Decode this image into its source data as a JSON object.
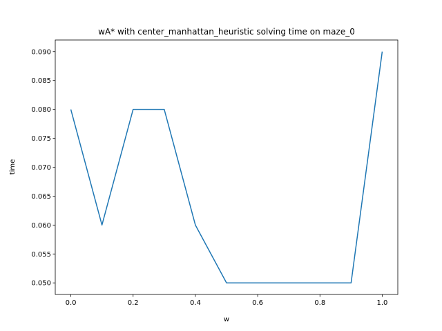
{
  "chart_data": {
    "type": "line",
    "title": "wA* with center_manhattan_heuristic solving time on maze_0",
    "xlabel": "w",
    "ylabel": "time",
    "x": [
      0.0,
      0.1,
      0.2,
      0.3,
      0.4,
      0.5,
      0.6,
      0.7,
      0.8,
      0.9,
      1.0
    ],
    "series": [
      {
        "values": [
          0.08,
          0.06,
          0.08,
          0.08,
          0.06,
          0.05,
          0.05,
          0.05,
          0.05,
          0.05,
          0.09
        ],
        "color": "#1f77b4"
      }
    ],
    "xlim": [
      -0.05,
      1.05
    ],
    "ylim": [
      0.048,
      0.092
    ],
    "xticks": [
      0.0,
      0.2,
      0.4,
      0.6,
      0.8,
      1.0
    ],
    "xtick_labels": [
      "0.0",
      "0.2",
      "0.4",
      "0.6",
      "0.8",
      "1.0"
    ],
    "yticks": [
      0.05,
      0.055,
      0.06,
      0.065,
      0.07,
      0.075,
      0.08,
      0.085,
      0.09
    ],
    "ytick_labels": [
      "0.050",
      "0.055",
      "0.060",
      "0.065",
      "0.070",
      "0.075",
      "0.080",
      "0.085",
      "0.090"
    ],
    "grid": false,
    "legend": "none"
  }
}
